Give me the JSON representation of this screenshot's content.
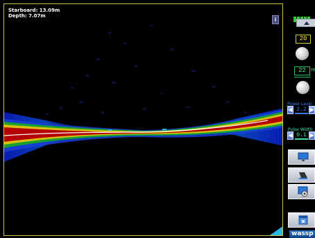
{
  "readout": {
    "starboard": "Starboard: 13.09m",
    "depth": "Depth: 7.07m"
  },
  "info_button": "i",
  "panel": {
    "range_value": "20",
    "pulse_value": "22",
    "pulse_unit": "m",
    "power_label": "Power Level",
    "power_value": "2.2",
    "pulse_width_label": "Pulse Width",
    "pulse_width_value": "0.1",
    "left_arrow": "◀",
    "right_arrow": "▶"
  },
  "logo": "wassp",
  "colors": {
    "border": "#cfc24a",
    "seabed_core": "#b40000",
    "accent_blue": "#3c7cf0",
    "accent_green": "#2fbe5a"
  }
}
